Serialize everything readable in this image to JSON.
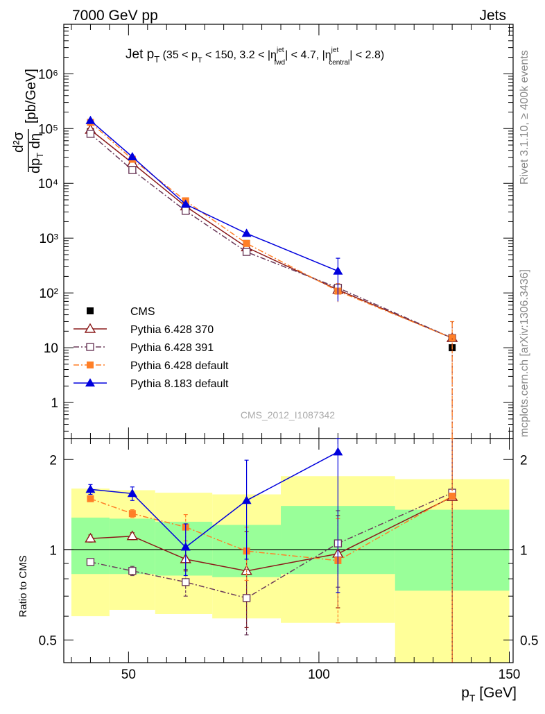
{
  "header": {
    "left": "7000 GeV pp",
    "right": "Jets"
  },
  "side_text": {
    "rivet": "Rivet 3.1.10, ≥ 400k events",
    "mcplots": "mcplots.cern.ch [arXiv:1306.3436]"
  },
  "plot_title": {
    "main": "Jet p",
    "main_sub": "T",
    "p1": " (35 < p",
    "p1_sub": "T",
    "p2": " < 150, 3.2 < |η",
    "eta_sup1": "jet",
    "eta_sub1": "fwd",
    "p3": "| < 4.7, |η",
    "eta_sup2": "jet",
    "eta_sub2": "central",
    "p4": "| < 2.8)"
  },
  "watermark": "CMS_2012_I1087342",
  "colors": {
    "data": "#000000",
    "p370": "#8b1a1a",
    "p391": "#6b3a5a",
    "p6def": "#ff7f27",
    "p8def": "#0000dd",
    "band_green": "#99ff99",
    "band_yellow": "#ffff99"
  },
  "chart_data": [
    {
      "type": "line",
      "name": "main",
      "yscale": "log",
      "xlim": [
        33,
        151
      ],
      "ylim": [
        0.22,
        8000000
      ],
      "ylabel": "d²σ/dp_T dη [pb/GeV]",
      "y_ticks": [
        {
          "value": 1,
          "label": "1"
        },
        {
          "value": 10,
          "label": "10"
        },
        {
          "value": 100,
          "label": "10²"
        },
        {
          "value": 1000,
          "label": "10³"
        },
        {
          "value": 10000,
          "label": "10⁴"
        },
        {
          "value": 100000,
          "label": "10⁵"
        },
        {
          "value": 1000000,
          "label": "10⁶"
        }
      ],
      "x": [
        40,
        51,
        65,
        81,
        105,
        135
      ],
      "bin_edges": [
        35,
        45,
        57,
        72,
        90,
        120,
        150
      ],
      "series": [
        {
          "name": "CMS",
          "values": [
            88000,
            21000,
            4100,
            800,
            118,
            10
          ],
          "style": "data"
        },
        {
          "name": "Pythia 6.428 370",
          "values": [
            95000,
            23500,
            3800,
            680,
            114,
            15
          ],
          "style": "p370",
          "errors": [
            0,
            0,
            0,
            0,
            0,
            0
          ]
        },
        {
          "name": "Pythia 6.428 391",
          "values": [
            80000,
            17500,
            3150,
            560,
            124,
            15
          ],
          "style": "p391",
          "errors": [
            0,
            0,
            0,
            0,
            0,
            0
          ]
        },
        {
          "name": "Pythia 6.428 default",
          "values": [
            130000,
            27500,
            4800,
            800,
            108,
            15
          ],
          "style": "p6def",
          "errors": [
            0,
            0,
            0,
            0,
            40,
            15
          ]
        },
        {
          "name": "Pythia 8.183 default",
          "values": [
            140000,
            30500,
            4150,
            1220,
            250,
            0
          ],
          "style": "p8def",
          "errors": [
            0,
            0,
            0,
            0,
            180,
            0
          ]
        }
      ],
      "legend": [
        "CMS",
        "Pythia 6.428 370",
        "Pythia 6.428 391",
        "Pythia 6.428 default",
        "Pythia 8.183 default"
      ]
    },
    {
      "type": "line",
      "name": "ratio",
      "yscale": "log",
      "xlim": [
        33,
        151
      ],
      "ylim": [
        0.42,
        2.35
      ],
      "ylabel": "Ratio to CMS",
      "xlabel": "p_T [GeV]",
      "x_ticks": [
        50,
        100,
        150
      ],
      "y_ticks": [
        {
          "value": 0.5,
          "label": "0.5"
        },
        {
          "value": 1,
          "label": "1"
        },
        {
          "value": 2,
          "label": "2"
        }
      ],
      "bands": [
        {
          "x0": 35,
          "x1": 45,
          "green": [
            0.83,
            1.28
          ],
          "yellow": [
            0.6,
            1.6
          ]
        },
        {
          "x0": 45,
          "x1": 57,
          "green": [
            0.83,
            1.27
          ],
          "yellow": [
            0.63,
            1.58
          ]
        },
        {
          "x0": 57,
          "x1": 72,
          "green": [
            0.82,
            1.24
          ],
          "yellow": [
            0.61,
            1.55
          ]
        },
        {
          "x0": 72,
          "x1": 90,
          "green": [
            0.81,
            1.21
          ],
          "yellow": [
            0.59,
            1.53
          ]
        },
        {
          "x0": 90,
          "x1": 120,
          "green": [
            0.83,
            1.4
          ],
          "yellow": [
            0.57,
            1.76
          ]
        },
        {
          "x0": 120,
          "x1": 150,
          "green": [
            0.73,
            1.36
          ],
          "yellow": [
            0.42,
            1.72
          ]
        }
      ],
      "x": [
        40,
        51,
        65,
        81,
        105,
        135
      ],
      "series": [
        {
          "name": "Pythia 6.428 370",
          "values": [
            1.09,
            1.11,
            0.93,
            0.85,
            0.97,
            1.5
          ],
          "style": "p370",
          "err_lo": [
            0.03,
            0.03,
            0.08,
            0.3,
            0.33,
            1.5
          ],
          "err_hi": [
            0.03,
            0.03,
            0.08,
            0.3,
            0.33,
            1.5
          ]
        },
        {
          "name": "Pythia 6.428 391",
          "values": [
            0.91,
            0.85,
            0.78,
            0.69,
            1.05,
            1.55
          ],
          "style": "p391",
          "err_lo": [
            0.02,
            0.03,
            0.08,
            0.17,
            0.3,
            1.55
          ],
          "err_hi": [
            0.02,
            0.03,
            0.08,
            0.17,
            0.3,
            1.55
          ]
        },
        {
          "name": "Pythia 6.428 default",
          "values": [
            1.48,
            1.32,
            1.19,
            0.99,
            0.92,
            1.51
          ],
          "style": "p6def",
          "err_lo": [
            0.03,
            0.04,
            0.12,
            0.2,
            0.35,
            1.51
          ],
          "err_hi": [
            0.03,
            0.04,
            0.12,
            0.2,
            0.35,
            1.51
          ]
        },
        {
          "name": "Pythia 8.183 default",
          "values": [
            1.59,
            1.54,
            1.02,
            1.46,
            2.12,
            null
          ],
          "style": "p8def",
          "err_lo": [
            0.06,
            0.08,
            0.2,
            0.53,
            1.4,
            0
          ],
          "err_hi": [
            0.06,
            0.08,
            0.2,
            0.53,
            1.4,
            0
          ]
        }
      ]
    }
  ]
}
